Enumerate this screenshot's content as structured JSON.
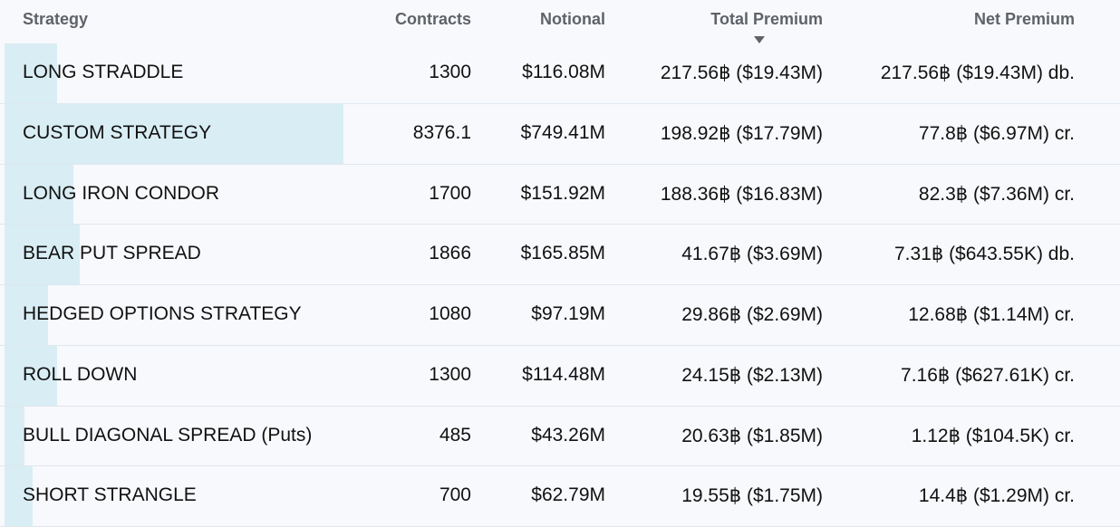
{
  "header": {
    "columns": [
      "Strategy",
      "Contracts",
      "Notional",
      "Total Premium",
      "Net Premium"
    ],
    "sorted_column": "Total Premium",
    "sort_direction": "descending"
  },
  "bar_color": "#d9edf4",
  "rows": [
    {
      "strategy": "LONG STRADDLE",
      "contracts": "1300",
      "notional": "$116.08M",
      "total_premium": "217.56฿ ($19.43M)",
      "net_premium": "217.56฿ ($19.43M) db."
    },
    {
      "strategy": "CUSTOM STRATEGY",
      "contracts": "8376.1",
      "notional": "$749.41M",
      "total_premium": "198.92฿ ($17.79M)",
      "net_premium": "77.8฿ ($6.97M) cr."
    },
    {
      "strategy": "LONG IRON CONDOR",
      "contracts": "1700",
      "notional": "$151.92M",
      "total_premium": "188.36฿ ($16.83M)",
      "net_premium": "82.3฿ ($7.36M) cr."
    },
    {
      "strategy": "BEAR PUT SPREAD",
      "contracts": "1866",
      "notional": "$165.85M",
      "total_premium": "41.67฿ ($3.69M)",
      "net_premium": "7.31฿ ($643.55K) db."
    },
    {
      "strategy": "HEDGED OPTIONS STRATEGY",
      "contracts": "1080",
      "notional": "$97.19M",
      "total_premium": "29.86฿ ($2.69M)",
      "net_premium": "12.68฿ ($1.14M) cr."
    },
    {
      "strategy": "ROLL DOWN",
      "contracts": "1300",
      "notional": "$114.48M",
      "total_premium": "24.15฿ ($2.13M)",
      "net_premium": "7.16฿ ($627.61K) cr."
    },
    {
      "strategy": "BULL DIAGONAL SPREAD (Puts)",
      "contracts": "485",
      "notional": "$43.26M",
      "total_premium": "20.63฿ ($1.85M)",
      "net_premium": "1.12฿ ($104.5K) cr."
    },
    {
      "strategy": "SHORT STRANGLE",
      "contracts": "700",
      "notional": "$62.79M",
      "total_premium": "19.55฿ ($1.75M)",
      "net_premium": "14.4฿ ($1.29M) cr."
    }
  ]
}
